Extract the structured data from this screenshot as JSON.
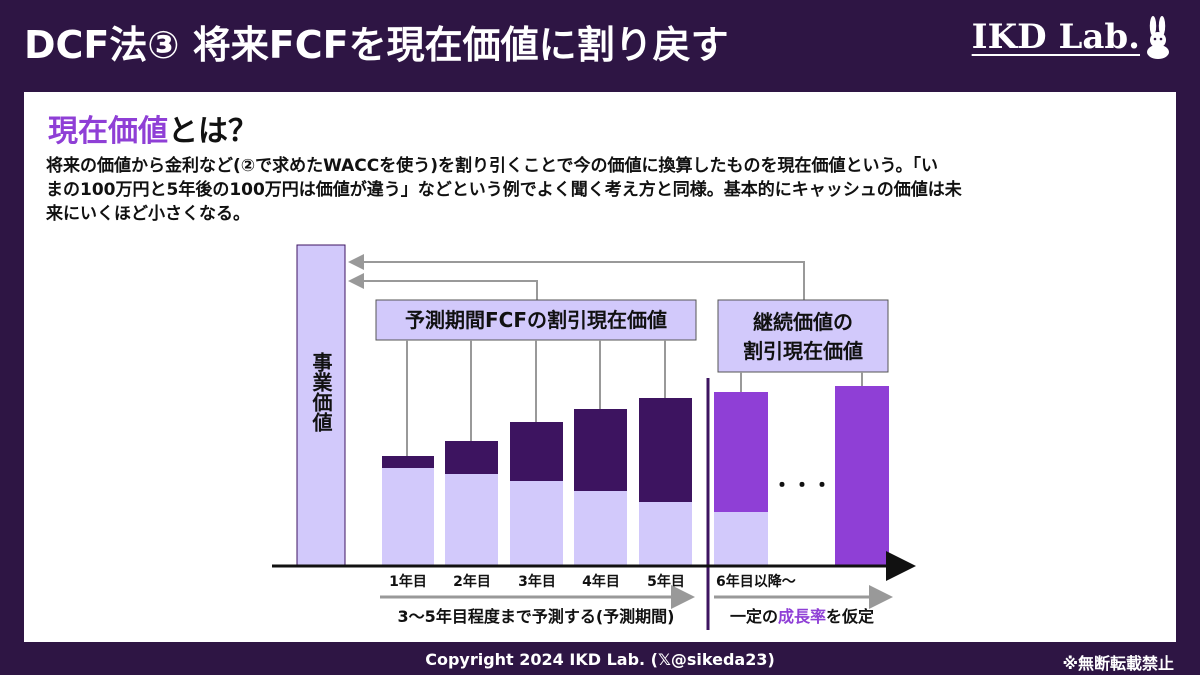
{
  "header": {
    "title": "DCF法③ 将来FCFを現在価値に割り戻す",
    "brand": "IKD Lab."
  },
  "section": {
    "heading_highlight": "現在価値",
    "heading_rest": "とは？",
    "description_lines": [
      "将来の価値から金利など(②で求めたWACCを使う)を割り引くことで今の価値に換算したものを現在価値という。「い",
      "まの100万円と5年後の100万円は価値が違う」などという例でよく聞く考え方と同様。基本的にキャッシュの価値は未",
      "来にいくほど小さくなる。"
    ]
  },
  "diagram": {
    "total_label": "事業価値",
    "forecast_box_label": "予測期間FCFの割引現在価値",
    "terminal_box_line1": "継続価値の",
    "terminal_box_line2": "割引現在価値",
    "years": [
      "1年目",
      "2年目",
      "3年目",
      "4年目",
      "5年目"
    ],
    "terminal_year_label": "6年目以降〜",
    "ellipsis": "・・・",
    "forecast_caption": "3〜5年目程度まで予測する(予測期間)",
    "terminal_caption_pre": "一定の",
    "terminal_caption_highlight": "成長率",
    "terminal_caption_post": "を仮定",
    "colors": {
      "dark": "#3d1460",
      "light": "#d2c9fb",
      "purple": "#8f3fd6",
      "total": "#d2c9fb",
      "gray": "#999999"
    }
  },
  "footer": {
    "copyright": "Copyright 2024 IKD Lab. (𝕏@sikeda23)",
    "note": "※無断転載禁止"
  }
}
